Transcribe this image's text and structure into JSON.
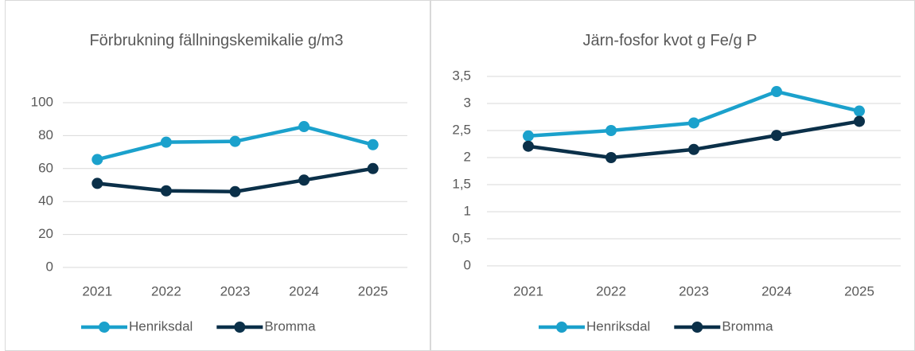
{
  "chart_data": [
    {
      "type": "line",
      "title": "Förbrukning fällningskemikalie g/m3",
      "categories": [
        "2021",
        "2022",
        "2023",
        "2024",
        "2025"
      ],
      "series": [
        {
          "name": "Henriksdal",
          "color": "#1ba1cc",
          "values": [
            65.5,
            76,
            76.5,
            85.5,
            74.5
          ]
        },
        {
          "name": "Bromma",
          "color": "#0b3049",
          "values": [
            51,
            46.5,
            46,
            53,
            60
          ]
        }
      ],
      "ylim": [
        0,
        100
      ],
      "yticks": [
        0,
        20,
        40,
        60,
        80,
        100
      ],
      "grid": true,
      "legend": "bottom"
    },
    {
      "type": "line",
      "title": "Järn-fosfor kvot g Fe/g P",
      "categories": [
        "2021",
        "2022",
        "2023",
        "2024",
        "2025"
      ],
      "series": [
        {
          "name": "Henriksdal",
          "color": "#1ba1cc",
          "values": [
            2.4,
            2.5,
            2.64,
            3.22,
            2.86
          ]
        },
        {
          "name": "Bromma",
          "color": "#0b3049",
          "values": [
            2.21,
            2.0,
            2.15,
            2.41,
            2.67
          ]
        }
      ],
      "ylim": [
        0,
        3.5
      ],
      "yticks": [
        0,
        {
          "value": 0.5,
          "label": "0,5"
        },
        1,
        {
          "value": 1.5,
          "label": "1,5"
        },
        2,
        {
          "value": 2.5,
          "label": "2,5"
        },
        3,
        {
          "value": 3.5,
          "label": "3,5"
        }
      ],
      "grid": true,
      "legend": "bottom"
    }
  ]
}
